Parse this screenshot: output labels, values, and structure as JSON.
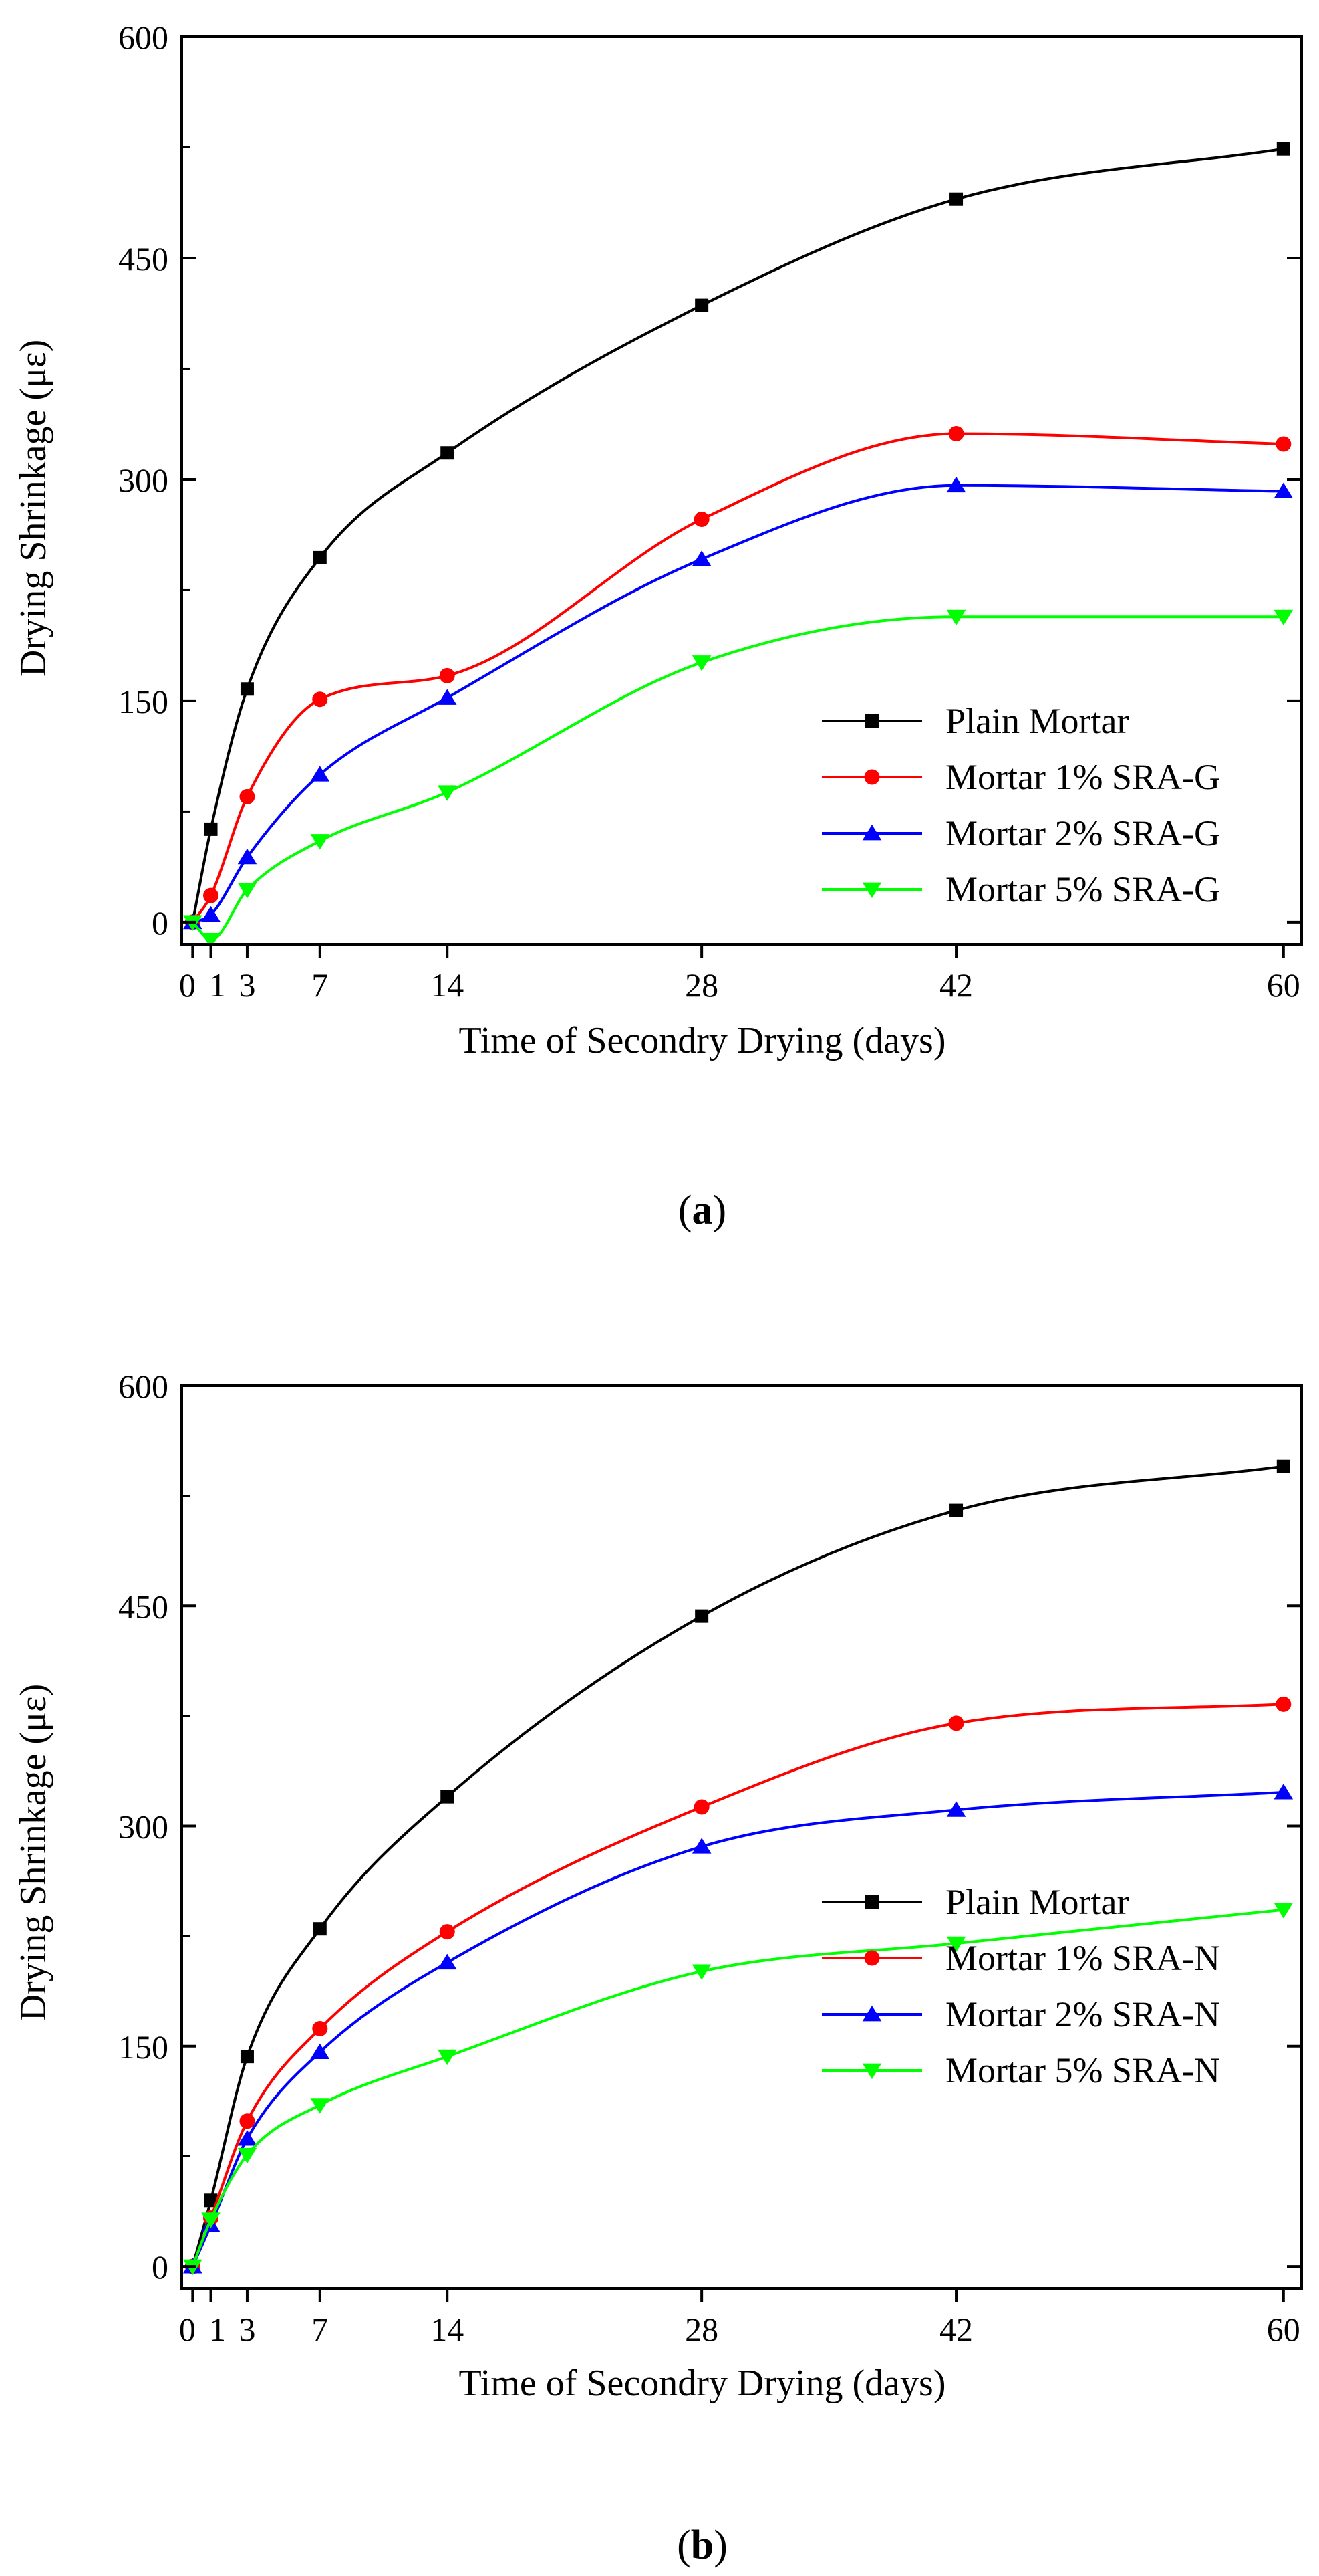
{
  "chart_data": [
    {
      "type": "line",
      "panel_label_open": "(",
      "panel_label_letter": "a",
      "panel_label_close": ")",
      "xlabel": "Time of Secondry Drying (days)",
      "ylabel": "Drying Shrinkage (με)",
      "xlim": [
        -0.6,
        61
      ],
      "ylim": [
        -15,
        600
      ],
      "xticks": [
        0,
        1,
        3,
        7,
        14,
        28,
        42,
        60
      ],
      "yticks": [
        0,
        150,
        300,
        450,
        600
      ],
      "legend_position": "bottom-right",
      "series": [
        {
          "name": "Plain Mortar",
          "color": "#000000",
          "marker": "square",
          "x": [
            0,
            1,
            3,
            7,
            14,
            28,
            42,
            60
          ],
          "y": [
            0,
            63,
            158,
            247,
            318,
            418,
            490,
            524
          ]
        },
        {
          "name": "Mortar 1% SRA-G",
          "color": "#ff0000",
          "marker": "circle",
          "x": [
            0,
            1,
            3,
            7,
            14,
            28,
            42,
            60
          ],
          "y": [
            0,
            18,
            85,
            151,
            167,
            273,
            331,
            324
          ]
        },
        {
          "name": "Mortar 2% SRA-G",
          "color": "#0000ff",
          "marker": "triangle-up",
          "x": [
            0,
            1,
            3,
            7,
            14,
            28,
            42,
            60
          ],
          "y": [
            0,
            5,
            44,
            100,
            152,
            246,
            296,
            292
          ]
        },
        {
          "name": "Mortar 5% SRA-G",
          "color": "#00ff00",
          "marker": "triangle-down",
          "x": [
            0,
            1,
            3,
            7,
            14,
            28,
            42,
            60
          ],
          "y": [
            0,
            -12,
            22,
            55,
            88,
            176,
            207,
            207
          ]
        }
      ]
    },
    {
      "type": "line",
      "panel_label_open": "(",
      "panel_label_letter": "b",
      "panel_label_close": ")",
      "xlabel": "Time of Secondry Drying (days)",
      "ylabel": "Drying Shrinkage (με)",
      "xlim": [
        -0.6,
        61
      ],
      "ylim": [
        -15,
        600
      ],
      "xticks": [
        0,
        1,
        3,
        7,
        14,
        28,
        42,
        60
      ],
      "yticks": [
        0,
        150,
        300,
        450,
        600
      ],
      "legend_position": "bottom-right",
      "series": [
        {
          "name": "Plain Mortar",
          "color": "#000000",
          "marker": "square",
          "x": [
            0,
            1,
            3,
            7,
            14,
            28,
            42,
            60
          ],
          "y": [
            0,
            45,
            143,
            230,
            320,
            443,
            515,
            545
          ]
        },
        {
          "name": "Mortar 1% SRA-N",
          "color": "#ff0000",
          "marker": "circle",
          "x": [
            0,
            1,
            3,
            7,
            14,
            28,
            42,
            60
          ],
          "y": [
            0,
            33,
            99,
            162,
            228,
            313,
            370,
            383
          ]
        },
        {
          "name": "Mortar 2% SRA-N",
          "color": "#0000ff",
          "marker": "triangle-up",
          "x": [
            0,
            1,
            3,
            7,
            14,
            28,
            42,
            60
          ],
          "y": [
            0,
            28,
            87,
            146,
            207,
            286,
            311,
            323
          ]
        },
        {
          "name": "Mortar 5% SRA-N",
          "color": "#00ff00",
          "marker": "triangle-down",
          "x": [
            0,
            1,
            3,
            7,
            14,
            28,
            42,
            60
          ],
          "y": [
            0,
            32,
            76,
            110,
            143,
            201,
            220,
            243
          ]
        }
      ]
    }
  ]
}
